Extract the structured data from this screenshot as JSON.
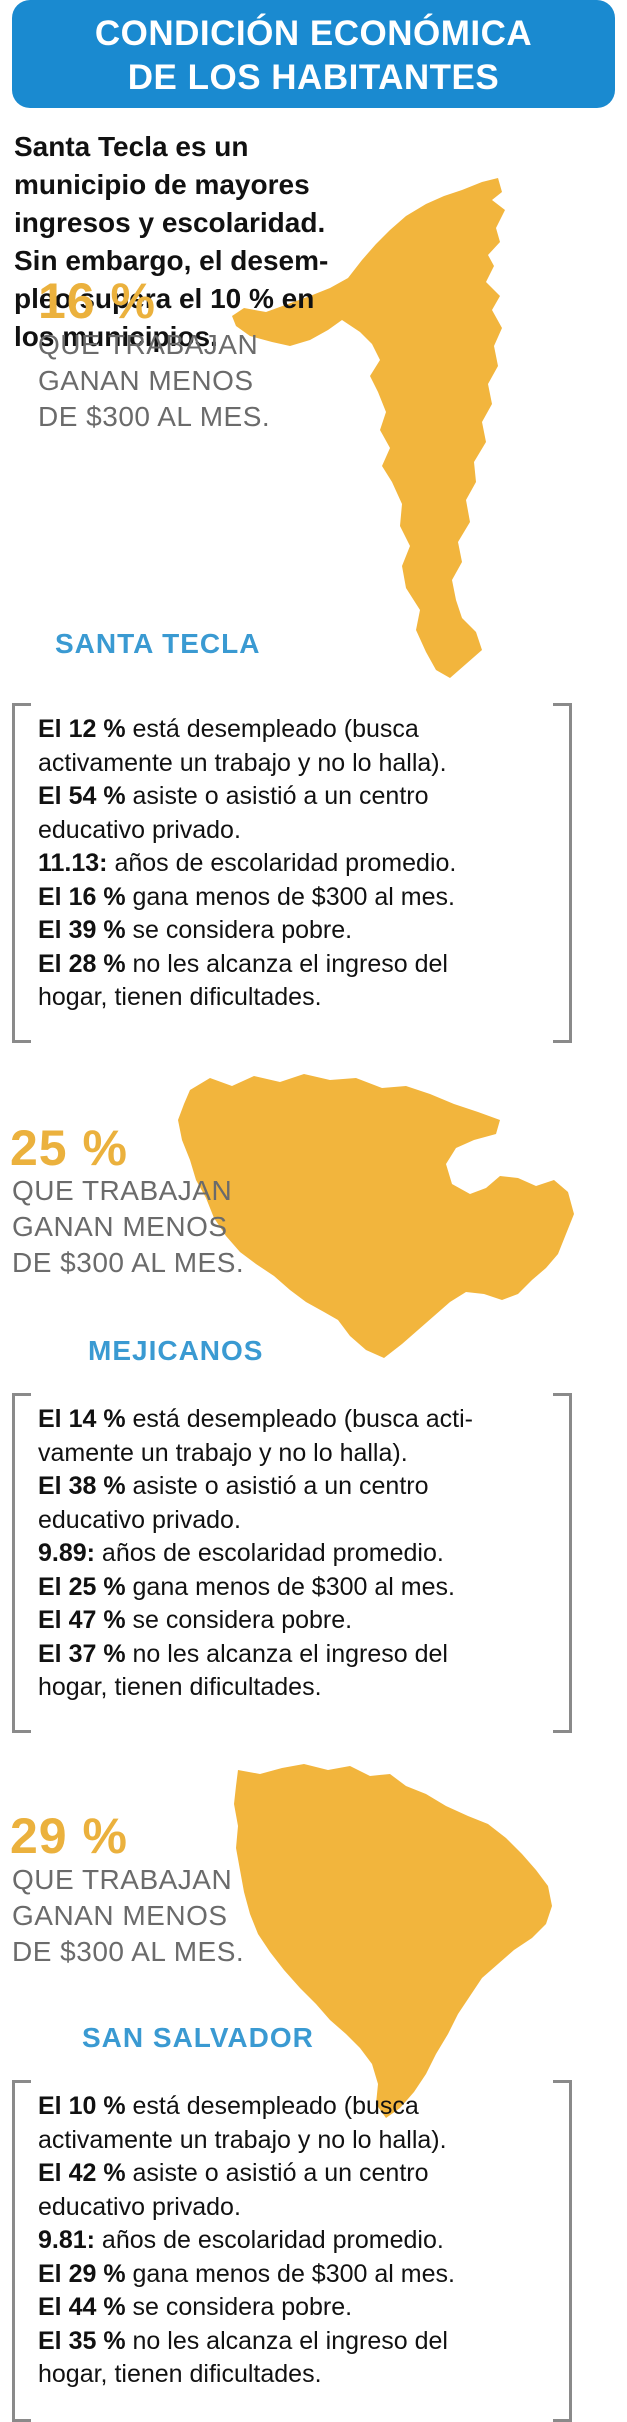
{
  "title": {
    "line1": "CONDICIÓN ECONÓMICA",
    "line2": "DE LOS HABITANTES"
  },
  "intro": {
    "lines": [
      "Santa Tecla es un",
      "municipio de mayores",
      "ingresos y escolaridad.",
      "Sin embargo, el desem-",
      "pleo supera el 10 % en",
      "los municipios."
    ]
  },
  "colors": {
    "banner": "#1a8ad0",
    "map": "#f2b53d",
    "percent": "#ebb13d",
    "place": "#3a9ad2",
    "bracket": "#8a8a8a"
  },
  "sections": [
    {
      "percent": "16 %",
      "caption": [
        "QUE TRABAJAN",
        "GANAN MENOS",
        "DE $300 AL MES."
      ],
      "place": "SANTA TECLA",
      "stats": [
        {
          "b": "El 12 %",
          "t": " está desempleado (busca"
        },
        {
          "b": "",
          "t": "activamente un trabajo y no lo halla)."
        },
        {
          "b": "El 54 %",
          "t": " asiste o asistió a un centro"
        },
        {
          "b": "",
          "t": "educativo privado."
        },
        {
          "b": "11.13:",
          "t": " años de escolaridad promedio."
        },
        {
          "b": "El 16 %",
          "t": " gana menos de $300 al mes."
        },
        {
          "b": "El 39 %",
          "t": " se considera pobre."
        },
        {
          "b": "El 28 %",
          "t": " no les alcanza el ingreso del"
        },
        {
          "b": "",
          "t": "hogar, tienen dificultades."
        }
      ]
    },
    {
      "percent": "25 %",
      "caption": [
        "QUE TRABAJAN",
        "GANAN MENOS",
        "DE $300 AL MES."
      ],
      "place": "MEJICANOS",
      "stats": [
        {
          "b": "El 14 %",
          "t": " está desempleado (busca acti-"
        },
        {
          "b": "",
          "t": "vamente un trabajo y no lo halla)."
        },
        {
          "b": "El 38 %",
          "t": " asiste o asistió a un centro"
        },
        {
          "b": "",
          "t": "educativo privado."
        },
        {
          "b": "9.89:",
          "t": " años de escolaridad promedio."
        },
        {
          "b": "El 25 %",
          "t": " gana menos de $300 al mes."
        },
        {
          "b": "El 47 %",
          "t": " se considera pobre."
        },
        {
          "b": "El 37 %",
          "t": " no les alcanza el ingreso del"
        },
        {
          "b": "",
          "t": "hogar, tienen dificultades."
        }
      ]
    },
    {
      "percent": "29 %",
      "caption": [
        "QUE TRABAJAN",
        "GANAN MENOS",
        "DE $300 AL MES."
      ],
      "place": "SAN SALVADOR",
      "stats": [
        {
          "b": "El 10 %",
          "t": " está desempleado (busca"
        },
        {
          "b": "",
          "t": "activamente un trabajo y no lo halla)."
        },
        {
          "b": "El 42 %",
          "t": " asiste o asistió a un centro"
        },
        {
          "b": "",
          "t": "educativo privado."
        },
        {
          "b": "9.81:",
          "t": " años de escolaridad promedio."
        },
        {
          "b": "El 29 %",
          "t": " gana menos de $300 al mes."
        },
        {
          "b": "El 44 %",
          "t": " se considera pobre."
        },
        {
          "b": "El 35 %",
          "t": " no les alcanza el ingreso del"
        },
        {
          "b": "",
          "t": "hogar, tienen dificultades."
        }
      ]
    }
  ]
}
